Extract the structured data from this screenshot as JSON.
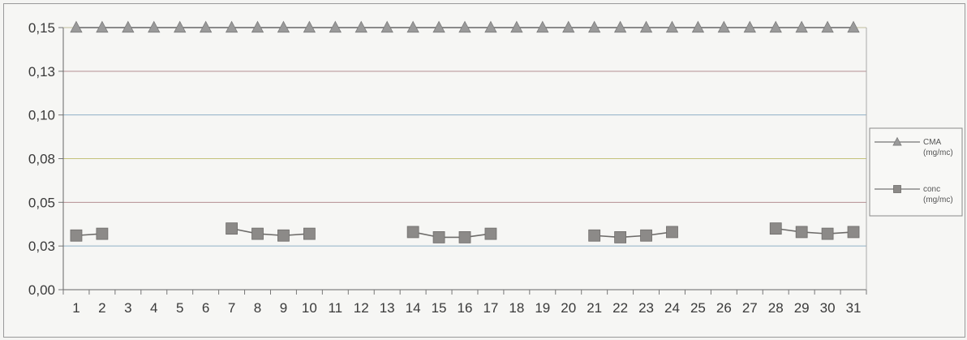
{
  "chart_data": {
    "type": "line",
    "title": "",
    "xlabel": "",
    "ylabel": "",
    "x": [
      1,
      2,
      3,
      4,
      5,
      6,
      7,
      8,
      9,
      10,
      11,
      12,
      13,
      14,
      15,
      16,
      17,
      18,
      19,
      20,
      21,
      22,
      23,
      24,
      25,
      26,
      27,
      28,
      29,
      30,
      31
    ],
    "x_tick_labels": [
      "1",
      "2",
      "3",
      "4",
      "5",
      "6",
      "7",
      "8",
      "9",
      "10",
      "11",
      "12",
      "13",
      "14",
      "15",
      "16",
      "17",
      "18",
      "19",
      "20",
      "21",
      "22",
      "23",
      "24",
      "25",
      "26",
      "27",
      "28",
      "29",
      "30",
      "31"
    ],
    "y_tick_labels": [
      "0,00",
      "0,03",
      "0,05",
      "0,08",
      "0,10",
      "0,13",
      "0,15"
    ],
    "ylim": [
      0,
      0.15
    ],
    "grid": true,
    "legend_position": "right",
    "series": [
      {
        "name_line1": "CMA",
        "name_line2": "(mg/mc)",
        "marker": "triangle",
        "color": "#9a9a9a",
        "values": [
          0.15,
          0.15,
          0.15,
          0.15,
          0.15,
          0.15,
          0.15,
          0.15,
          0.15,
          0.15,
          0.15,
          0.15,
          0.15,
          0.15,
          0.15,
          0.15,
          0.15,
          0.15,
          0.15,
          0.15,
          0.15,
          0.15,
          0.15,
          0.15,
          0.15,
          0.15,
          0.15,
          0.15,
          0.15,
          0.15,
          0.15
        ]
      },
      {
        "name_line1": "conc",
        "name_line2": "(mg/mc)",
        "marker": "square",
        "color": "#8c8a88",
        "values": [
          0.031,
          0.032,
          null,
          null,
          null,
          null,
          0.035,
          0.032,
          0.031,
          0.032,
          null,
          null,
          null,
          0.033,
          0.03,
          0.03,
          0.032,
          null,
          null,
          null,
          0.031,
          0.03,
          0.031,
          0.033,
          null,
          null,
          null,
          0.035,
          0.033,
          0.032,
          0.033
        ]
      }
    ],
    "gridline_colors": [
      "#8fb0c6",
      "#b48e92",
      "#c4c27a",
      "#8fb0c6",
      "#b48e92",
      "#c4c27a"
    ]
  }
}
